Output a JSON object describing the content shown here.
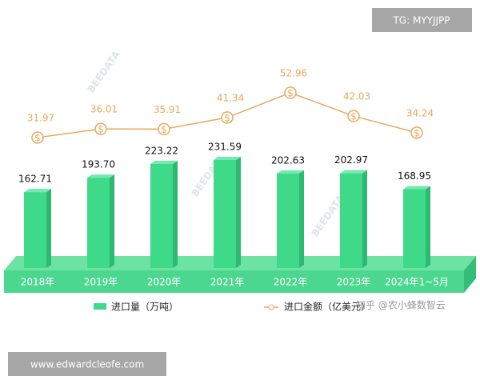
{
  "chart_data": {
    "type": "bar-line",
    "categories": [
      "2018年",
      "2019年",
      "2020年",
      "2021年",
      "2022年",
      "2023年",
      "2024年1~5月"
    ],
    "series": [
      {
        "name": "进口量（万吨）",
        "type": "bar",
        "color": "#3fd98a",
        "values": [
          162.71,
          193.7,
          223.22,
          231.59,
          202.63,
          202.97,
          168.95
        ],
        "value_labels": [
          "162.71",
          "193.70",
          "223.22",
          "231.59",
          "202.63",
          "202.97",
          "168.95"
        ]
      },
      {
        "name": "进口金额（亿美元）",
        "type": "line",
        "axis": "y2",
        "color": "#e8a95c",
        "values": [
          31.97,
          36.01,
          35.91,
          41.34,
          52.96,
          42.03,
          34.24
        ]
      }
    ],
    "annotations": [
      "TG: MYYJJPP",
      "www.edwardcleofe.com",
      "知乎 @农小蜂数智云",
      "BEEDATA"
    ]
  }
}
